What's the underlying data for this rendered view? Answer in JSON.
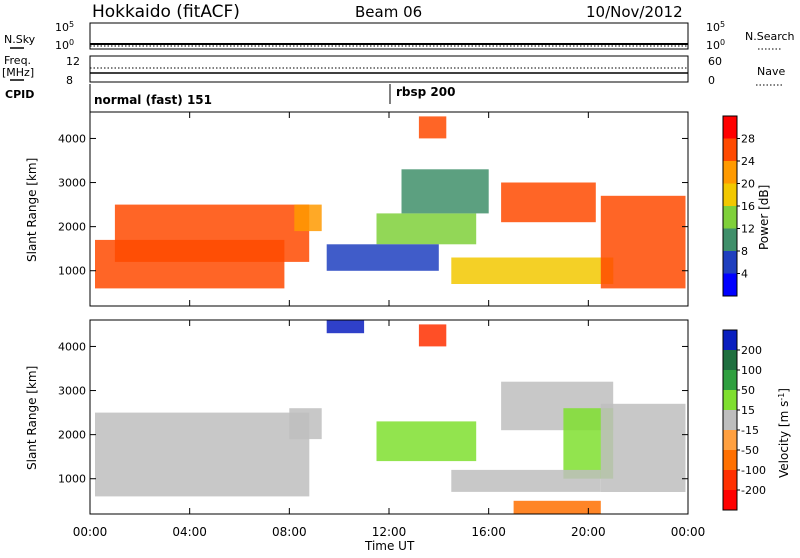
{
  "header": {
    "station": "Hokkaido (fitACF)",
    "beam": "Beam 06",
    "date": "10/Nov/2012"
  },
  "strip_labels": {
    "nsky": "N.Sky",
    "nsearch": "N.Search",
    "freq_top": "Freq.",
    "freq_unit": "[MHz]",
    "nave": "Nave",
    "cpid": "CPID",
    "sky_tick_top": "10^5",
    "sky_tick_bottom": "10^0",
    "search_tick_top": "10^5",
    "search_tick_bottom": "10^0",
    "freq_tick_top": "12",
    "freq_tick_bottom": "8",
    "nave_tick_top": "60",
    "nave_tick_bottom": "0",
    "cpid_segments": [
      "normal (fast) 151",
      "rbsp 200"
    ]
  },
  "chart_data": [
    {
      "type": "heatmap",
      "title": "Power",
      "xlabel": "Time UT",
      "ylabel": "Slant Range [km]",
      "xlim": [
        "00:00",
        "24:00"
      ],
      "ylim": [
        200,
        4600
      ],
      "x_ticks": [
        "00:00",
        "04:00",
        "08:00",
        "12:00",
        "16:00",
        "20:00",
        "00:00"
      ],
      "y_ticks": [
        1000,
        2000,
        3000,
        4000
      ],
      "colorbar": {
        "label": "Power [dB]",
        "ticks": [
          "28",
          "24",
          "20",
          "16",
          "12",
          "8",
          "4"
        ],
        "colors": [
          "#ff0000",
          "#ff4a00",
          "#ff9a00",
          "#f2c800",
          "#7fd03a",
          "#3f8f6a",
          "#1f3fbf",
          "#0000ff"
        ]
      },
      "regions": [
        {
          "x": [
            0.2,
            7.8
          ],
          "y": [
            600,
            1700
          ],
          "value": 28
        },
        {
          "x": [
            1.0,
            8.8
          ],
          "y": [
            1200,
            2500
          ],
          "value": 28
        },
        {
          "x": [
            8.2,
            9.3
          ],
          "y": [
            1900,
            2500
          ],
          "value": 24
        },
        {
          "x": [
            13.2,
            14.3
          ],
          "y": [
            4000,
            4500
          ],
          "value": 28
        },
        {
          "x": [
            14.5,
            21.0
          ],
          "y": [
            700,
            1300
          ],
          "value": 20
        },
        {
          "x": [
            16.5,
            20.3
          ],
          "y": [
            2100,
            3000
          ],
          "value": 28
        },
        {
          "x": [
            20.5,
            23.9
          ],
          "y": [
            600,
            2700
          ],
          "value": 28
        },
        {
          "x": [
            11.5,
            15.5
          ],
          "y": [
            1600,
            2300
          ],
          "value": 16
        },
        {
          "x": [
            12.5,
            16.0
          ],
          "y": [
            2300,
            3300
          ],
          "value": 12
        },
        {
          "x": [
            9.5,
            14.0
          ],
          "y": [
            1000,
            1600
          ],
          "value": 8
        }
      ]
    },
    {
      "type": "heatmap",
      "title": "Velocity",
      "xlabel": "Time UT",
      "ylabel": "Slant Range [km]",
      "xlim": [
        "00:00",
        "24:00"
      ],
      "ylim": [
        200,
        4600
      ],
      "x_ticks": [
        "00:00",
        "04:00",
        "08:00",
        "12:00",
        "16:00",
        "20:00",
        "00:00"
      ],
      "y_ticks": [
        1000,
        2000,
        3000,
        4000
      ],
      "colorbar": {
        "label": "Velocity [m s^-1]",
        "ticks": [
          "200",
          "100",
          "50",
          "15",
          "-15",
          "-50",
          "-100",
          "-200"
        ],
        "colors": [
          "#0a1fbf",
          "#1f6f3f",
          "#2f9f3f",
          "#7fdf2f",
          "#bebebe",
          "#ffa040",
          "#ff7000",
          "#ff3000",
          "#ff0000"
        ]
      },
      "regions": [
        {
          "x": [
            0.2,
            8.8
          ],
          "y": [
            600,
            2500
          ],
          "value": 0
        },
        {
          "x": [
            8.0,
            9.3
          ],
          "y": [
            1900,
            2600
          ],
          "value": 0
        },
        {
          "x": [
            13.2,
            14.3
          ],
          "y": [
            4000,
            4500
          ],
          "value": -200
        },
        {
          "x": [
            9.5,
            11.0
          ],
          "y": [
            4300,
            4600
          ],
          "value": 200
        },
        {
          "x": [
            11.5,
            15.5
          ],
          "y": [
            1400,
            2300
          ],
          "value": 30
        },
        {
          "x": [
            16.5,
            21.0
          ],
          "y": [
            2100,
            3200
          ],
          "value": 0
        },
        {
          "x": [
            19.0,
            21.0
          ],
          "y": [
            1000,
            2600
          ],
          "value": 30
        },
        {
          "x": [
            20.5,
            23.9
          ],
          "y": [
            700,
            2700
          ],
          "value": 0
        },
        {
          "x": [
            14.5,
            20.5
          ],
          "y": [
            700,
            1200
          ],
          "value": 0
        },
        {
          "x": [
            17.0,
            20.5
          ],
          "y": [
            200,
            500
          ],
          "value": -60
        }
      ]
    }
  ]
}
